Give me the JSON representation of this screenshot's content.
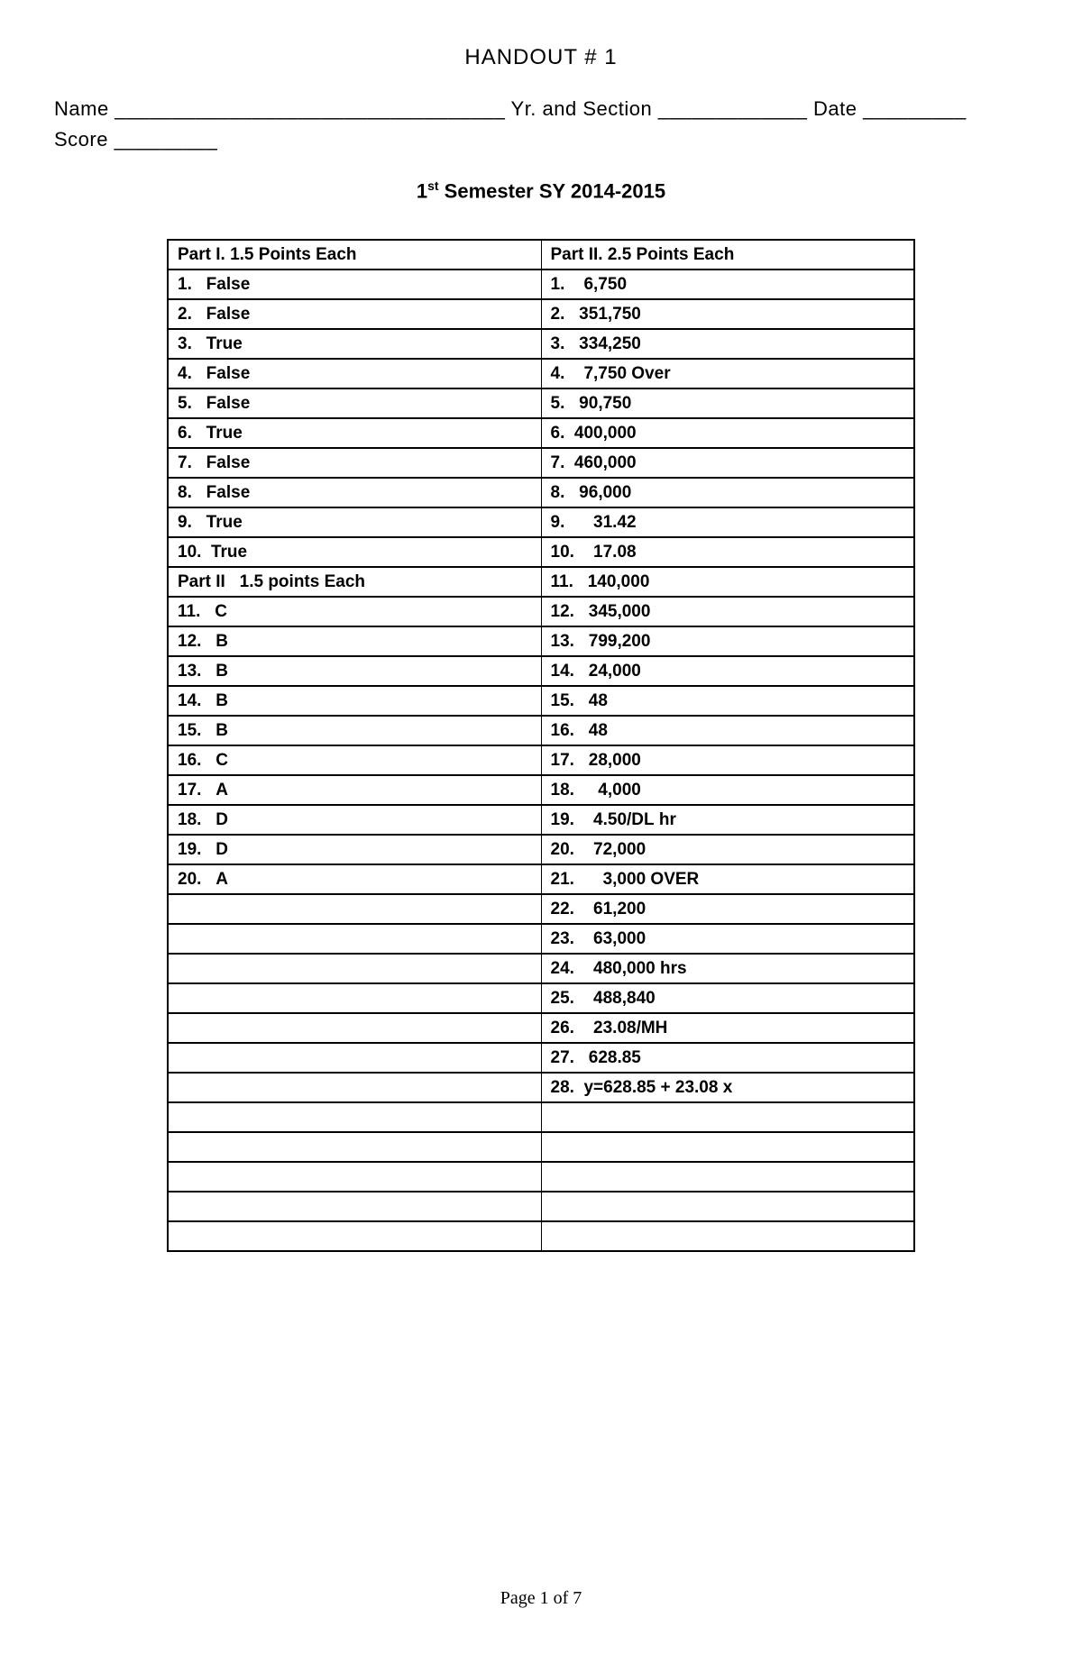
{
  "header": {
    "handout_title": "HANDOUT # 1",
    "name_line": "Name __________________________________ Yr. and Section _____________ Date _________",
    "score_line": "Score _________",
    "semester_prefix": "1",
    "semester_suffix": "st",
    "semester_rest": " Semester SY 2014-2015"
  },
  "table": {
    "left_header": "Part I.  1.5 Points Each",
    "right_header": "Part II.  2.5 Points Each",
    "rows": [
      {
        "left": "1.   False",
        "right": "1.    6,750"
      },
      {
        "left": "2.   False",
        "right": "2.   351,750"
      },
      {
        "left": "3.   True",
        "right": "3.   334,250"
      },
      {
        "left": "4.   False",
        "right": "4.    7,750 Over"
      },
      {
        "left": "5.   False",
        "right": "5.   90,750"
      },
      {
        "left": "6.   True",
        "right": "6.  400,000"
      },
      {
        "left": "7.   False",
        "right": "7.  460,000"
      },
      {
        "left": "8.   False",
        "right": "8.   96,000"
      },
      {
        "left": "9.   True",
        "right": "9.      31.42"
      },
      {
        "left": "10.  True",
        "right": "10.    17.08"
      },
      {
        "left": "Part II   1.5 points Each",
        "right": "11.   140,000"
      },
      {
        "left": "11.   C",
        "right": "12.   345,000"
      },
      {
        "left": "12.   B",
        "right": "13.   799,200"
      },
      {
        "left": "13.   B",
        "right": "14.   24,000"
      },
      {
        "left": "14.   B",
        "right": "15.   48"
      },
      {
        "left": "15.   B",
        "right": "16.   48"
      },
      {
        "left": "16.   C",
        "right": "17.   28,000"
      },
      {
        "left": "17.   A",
        "right": "18.     4,000"
      },
      {
        "left": "18.   D",
        "right": "19.    4.50/DL hr"
      },
      {
        "left": "19.   D",
        "right": "20.    72,000"
      },
      {
        "left": "20.   A",
        "right": "21.      3,000 OVER"
      },
      {
        "left": "",
        "right": "22.    61,200"
      },
      {
        "left": "",
        "right": "23.    63,000"
      },
      {
        "left": "",
        "right": "24.    480,000 hrs"
      },
      {
        "left": "",
        "right": "25.    488,840"
      },
      {
        "left": "",
        "right": "26.    23.08/MH"
      },
      {
        "left": "",
        "right": "27.   628.85"
      },
      {
        "left": "",
        "right": "28.  y=628.85 + 23.08 x"
      },
      {
        "left": "",
        "right": ""
      },
      {
        "left": "",
        "right": ""
      },
      {
        "left": "",
        "right": ""
      },
      {
        "left": "",
        "right": ""
      },
      {
        "left": "",
        "right": ""
      }
    ]
  },
  "footer": {
    "page_text": "Page 1 of 7"
  }
}
